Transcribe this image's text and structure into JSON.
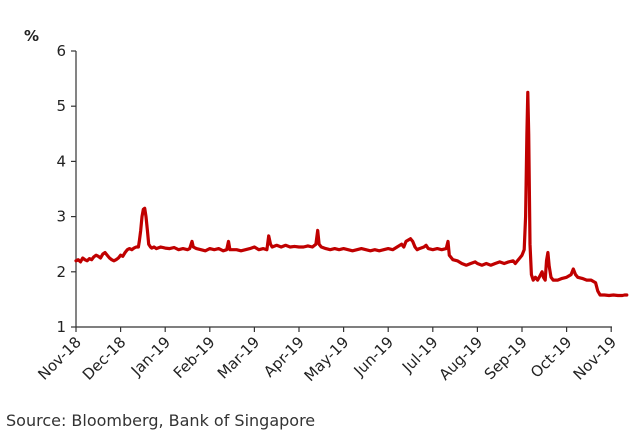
{
  "chart_data": {
    "type": "line",
    "y_unit_label": "%",
    "ylim": [
      1,
      6
    ],
    "y_ticks": [
      1,
      2,
      3,
      4,
      5,
      6
    ],
    "x_tick_labels": [
      "Nov-18",
      "Dec-18",
      "Jan-19",
      "Feb-19",
      "Mar-19",
      "Apr-19",
      "May-19",
      "Jun-19",
      "Jul-19",
      "Aug-19",
      "Sep-19",
      "Oct-19",
      "Nov-19"
    ],
    "x_range_months": [
      0,
      12.35
    ],
    "grid": false,
    "legend": "none",
    "line_color": "#C00000",
    "series": [
      {
        "points": [
          [
            0.0,
            2.2
          ],
          [
            0.05,
            2.22
          ],
          [
            0.1,
            2.18
          ],
          [
            0.15,
            2.25
          ],
          [
            0.2,
            2.22
          ],
          [
            0.25,
            2.2
          ],
          [
            0.3,
            2.24
          ],
          [
            0.35,
            2.22
          ],
          [
            0.4,
            2.27
          ],
          [
            0.45,
            2.3
          ],
          [
            0.5,
            2.28
          ],
          [
            0.55,
            2.25
          ],
          [
            0.6,
            2.32
          ],
          [
            0.65,
            2.35
          ],
          [
            0.7,
            2.3
          ],
          [
            0.75,
            2.25
          ],
          [
            0.8,
            2.22
          ],
          [
            0.85,
            2.2
          ],
          [
            0.9,
            2.22
          ],
          [
            0.95,
            2.25
          ],
          [
            1.0,
            2.3
          ],
          [
            1.05,
            2.28
          ],
          [
            1.1,
            2.35
          ],
          [
            1.15,
            2.4
          ],
          [
            1.2,
            2.42
          ],
          [
            1.25,
            2.4
          ],
          [
            1.3,
            2.43
          ],
          [
            1.35,
            2.45
          ],
          [
            1.4,
            2.45
          ],
          [
            1.42,
            2.55
          ],
          [
            1.45,
            2.75
          ],
          [
            1.48,
            3.0
          ],
          [
            1.51,
            3.13
          ],
          [
            1.54,
            3.15
          ],
          [
            1.57,
            3.0
          ],
          [
            1.6,
            2.75
          ],
          [
            1.63,
            2.5
          ],
          [
            1.67,
            2.45
          ],
          [
            1.7,
            2.43
          ],
          [
            1.75,
            2.45
          ],
          [
            1.8,
            2.42
          ],
          [
            1.9,
            2.45
          ],
          [
            2.0,
            2.43
          ],
          [
            2.1,
            2.42
          ],
          [
            2.2,
            2.44
          ],
          [
            2.3,
            2.4
          ],
          [
            2.4,
            2.42
          ],
          [
            2.5,
            2.4
          ],
          [
            2.55,
            2.42
          ],
          [
            2.6,
            2.55
          ],
          [
            2.63,
            2.45
          ],
          [
            2.7,
            2.42
          ],
          [
            2.8,
            2.4
          ],
          [
            2.9,
            2.38
          ],
          [
            3.0,
            2.42
          ],
          [
            3.1,
            2.4
          ],
          [
            3.2,
            2.42
          ],
          [
            3.3,
            2.38
          ],
          [
            3.38,
            2.4
          ],
          [
            3.42,
            2.55
          ],
          [
            3.45,
            2.4
          ],
          [
            3.5,
            2.4
          ],
          [
            3.6,
            2.4
          ],
          [
            3.7,
            2.38
          ],
          [
            3.8,
            2.4
          ],
          [
            3.9,
            2.42
          ],
          [
            4.0,
            2.45
          ],
          [
            4.1,
            2.4
          ],
          [
            4.2,
            2.42
          ],
          [
            4.28,
            2.4
          ],
          [
            4.32,
            2.65
          ],
          [
            4.36,
            2.5
          ],
          [
            4.4,
            2.45
          ],
          [
            4.5,
            2.48
          ],
          [
            4.6,
            2.45
          ],
          [
            4.7,
            2.48
          ],
          [
            4.8,
            2.45
          ],
          [
            4.9,
            2.46
          ],
          [
            5.0,
            2.45
          ],
          [
            5.1,
            2.45
          ],
          [
            5.2,
            2.47
          ],
          [
            5.3,
            2.45
          ],
          [
            5.38,
            2.5
          ],
          [
            5.42,
            2.75
          ],
          [
            5.45,
            2.5
          ],
          [
            5.5,
            2.45
          ],
          [
            5.6,
            2.42
          ],
          [
            5.7,
            2.4
          ],
          [
            5.8,
            2.42
          ],
          [
            5.9,
            2.4
          ],
          [
            6.0,
            2.42
          ],
          [
            6.1,
            2.4
          ],
          [
            6.2,
            2.38
          ],
          [
            6.3,
            2.4
          ],
          [
            6.4,
            2.42
          ],
          [
            6.5,
            2.4
          ],
          [
            6.6,
            2.38
          ],
          [
            6.7,
            2.4
          ],
          [
            6.8,
            2.38
          ],
          [
            6.9,
            2.4
          ],
          [
            7.0,
            2.42
          ],
          [
            7.1,
            2.4
          ],
          [
            7.2,
            2.45
          ],
          [
            7.3,
            2.5
          ],
          [
            7.35,
            2.45
          ],
          [
            7.4,
            2.55
          ],
          [
            7.5,
            2.6
          ],
          [
            7.55,
            2.55
          ],
          [
            7.6,
            2.45
          ],
          [
            7.65,
            2.4
          ],
          [
            7.7,
            2.42
          ],
          [
            7.8,
            2.45
          ],
          [
            7.85,
            2.48
          ],
          [
            7.9,
            2.42
          ],
          [
            8.0,
            2.4
          ],
          [
            8.1,
            2.42
          ],
          [
            8.2,
            2.4
          ],
          [
            8.3,
            2.42
          ],
          [
            8.34,
            2.55
          ],
          [
            8.37,
            2.3
          ],
          [
            8.45,
            2.22
          ],
          [
            8.55,
            2.2
          ],
          [
            8.65,
            2.15
          ],
          [
            8.75,
            2.12
          ],
          [
            8.85,
            2.15
          ],
          [
            8.95,
            2.18
          ],
          [
            9.0,
            2.15
          ],
          [
            9.1,
            2.12
          ],
          [
            9.2,
            2.15
          ],
          [
            9.3,
            2.12
          ],
          [
            9.4,
            2.15
          ],
          [
            9.5,
            2.18
          ],
          [
            9.6,
            2.15
          ],
          [
            9.7,
            2.18
          ],
          [
            9.8,
            2.2
          ],
          [
            9.85,
            2.15
          ],
          [
            9.9,
            2.2
          ],
          [
            9.95,
            2.25
          ],
          [
            10.0,
            2.3
          ],
          [
            10.05,
            2.4
          ],
          [
            10.08,
            3.0
          ],
          [
            10.11,
            4.5
          ],
          [
            10.13,
            5.25
          ],
          [
            10.15,
            4.5
          ],
          [
            10.18,
            2.5
          ],
          [
            10.21,
            1.95
          ],
          [
            10.25,
            1.85
          ],
          [
            10.3,
            1.9
          ],
          [
            10.35,
            1.85
          ],
          [
            10.4,
            1.92
          ],
          [
            10.45,
            2.0
          ],
          [
            10.48,
            1.9
          ],
          [
            10.52,
            1.85
          ],
          [
            10.55,
            2.2
          ],
          [
            10.58,
            2.35
          ],
          [
            10.61,
            2.1
          ],
          [
            10.65,
            1.9
          ],
          [
            10.7,
            1.85
          ],
          [
            10.8,
            1.85
          ],
          [
            10.9,
            1.88
          ],
          [
            11.0,
            1.9
          ],
          [
            11.1,
            1.95
          ],
          [
            11.15,
            2.05
          ],
          [
            11.2,
            1.95
          ],
          [
            11.25,
            1.9
          ],
          [
            11.35,
            1.88
          ],
          [
            11.45,
            1.85
          ],
          [
            11.55,
            1.85
          ],
          [
            11.65,
            1.8
          ],
          [
            11.7,
            1.65
          ],
          [
            11.75,
            1.58
          ],
          [
            11.85,
            1.58
          ],
          [
            11.95,
            1.57
          ],
          [
            12.05,
            1.58
          ],
          [
            12.15,
            1.57
          ],
          [
            12.25,
            1.57
          ],
          [
            12.3,
            1.58
          ],
          [
            12.35,
            1.58
          ]
        ]
      }
    ]
  },
  "footer": {
    "source": "Source: Bloomberg, Bank of Singapore"
  }
}
